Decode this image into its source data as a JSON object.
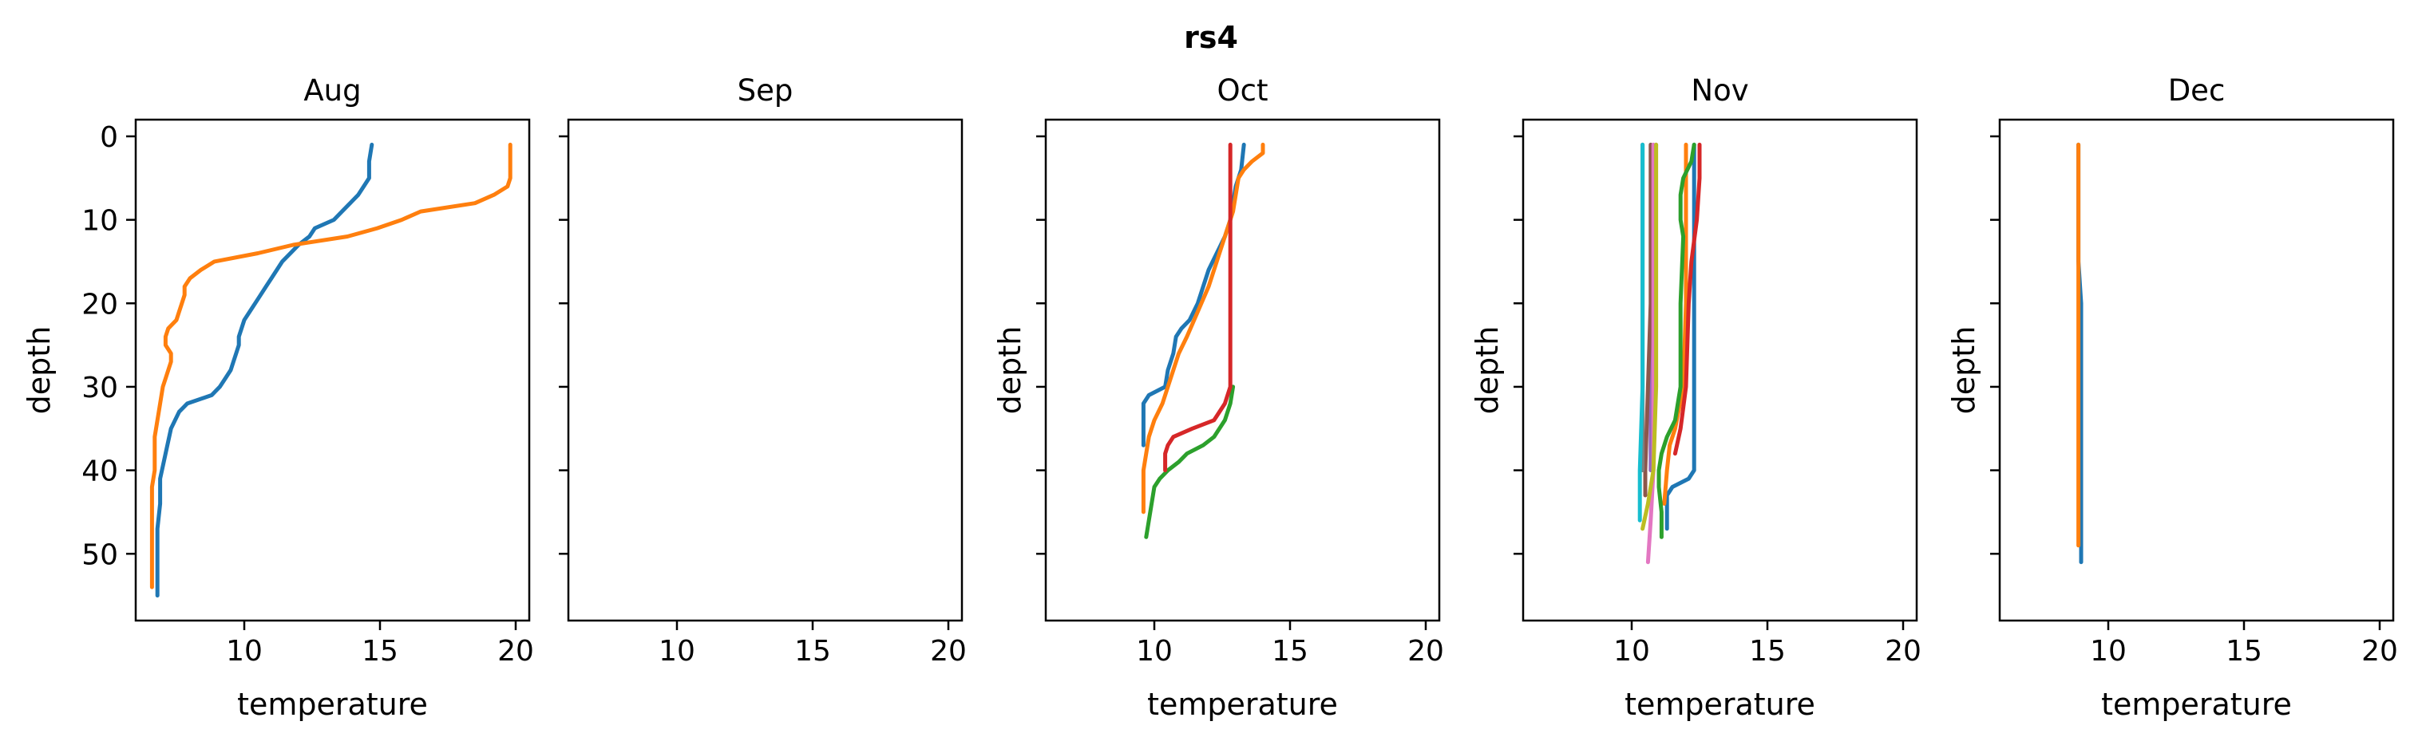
{
  "figure": {
    "suptitle": "rs4"
  },
  "chart_data": [
    {
      "type": "line",
      "title": "Aug",
      "xlabel": "temperature",
      "ylabel": "depth",
      "xlim": [
        6.0,
        20.5
      ],
      "ylim": [
        58,
        -2
      ],
      "y_inverted": true,
      "xticks": [
        10,
        15,
        20
      ],
      "yticks": [
        0,
        10,
        20,
        30,
        40,
        50
      ],
      "show_yticklabels": true,
      "grid": false,
      "series": [
        {
          "color": "#1f77b4",
          "points": [
            [
              14.7,
              1
            ],
            [
              14.6,
              3
            ],
            [
              14.6,
              5
            ],
            [
              14.4,
              6
            ],
            [
              14.2,
              7
            ],
            [
              13.9,
              8
            ],
            [
              13.6,
              9
            ],
            [
              13.3,
              10
            ],
            [
              12.6,
              11
            ],
            [
              12.4,
              12
            ],
            [
              12.0,
              13
            ],
            [
              11.7,
              14
            ],
            [
              11.4,
              15
            ],
            [
              11.2,
              16
            ],
            [
              11.0,
              17
            ],
            [
              10.8,
              18
            ],
            [
              10.6,
              19
            ],
            [
              10.4,
              20
            ],
            [
              10.2,
              21
            ],
            [
              10.0,
              22
            ],
            [
              9.9,
              23
            ],
            [
              9.8,
              24
            ],
            [
              9.8,
              25
            ],
            [
              9.7,
              26
            ],
            [
              9.6,
              27
            ],
            [
              9.5,
              28
            ],
            [
              9.3,
              29
            ],
            [
              9.1,
              30
            ],
            [
              8.8,
              31
            ],
            [
              7.9,
              32
            ],
            [
              7.6,
              33
            ],
            [
              7.3,
              35
            ],
            [
              7.1,
              38
            ],
            [
              6.9,
              41
            ],
            [
              6.9,
              44
            ],
            [
              6.8,
              47
            ],
            [
              6.8,
              50
            ],
            [
              6.8,
              53
            ],
            [
              6.8,
              55
            ]
          ]
        },
        {
          "color": "#ff7f0e",
          "points": [
            [
              19.8,
              1
            ],
            [
              19.8,
              3
            ],
            [
              19.8,
              5
            ],
            [
              19.7,
              6
            ],
            [
              19.2,
              7
            ],
            [
              18.5,
              8
            ],
            [
              16.5,
              9
            ],
            [
              15.8,
              10
            ],
            [
              14.9,
              11
            ],
            [
              13.8,
              12
            ],
            [
              11.8,
              13
            ],
            [
              10.5,
              14
            ],
            [
              8.9,
              15
            ],
            [
              8.4,
              16
            ],
            [
              8.0,
              17
            ],
            [
              7.8,
              18
            ],
            [
              7.8,
              19
            ],
            [
              7.7,
              20
            ],
            [
              7.6,
              21
            ],
            [
              7.5,
              22
            ],
            [
              7.2,
              23
            ],
            [
              7.1,
              24
            ],
            [
              7.1,
              25
            ],
            [
              7.3,
              26
            ],
            [
              7.3,
              27
            ],
            [
              7.2,
              28
            ],
            [
              7.1,
              29
            ],
            [
              7.0,
              30
            ],
            [
              6.9,
              32
            ],
            [
              6.8,
              34
            ],
            [
              6.7,
              36
            ],
            [
              6.7,
              38
            ],
            [
              6.7,
              40
            ],
            [
              6.6,
              42
            ],
            [
              6.6,
              44
            ],
            [
              6.6,
              46
            ],
            [
              6.6,
              48
            ],
            [
              6.6,
              50
            ],
            [
              6.6,
              52
            ],
            [
              6.6,
              54
            ]
          ]
        }
      ]
    },
    {
      "type": "line",
      "title": "Sep",
      "xlabel": "",
      "ylabel": "",
      "xlim": [
        6.0,
        20.5
      ],
      "ylim": [
        58,
        -2
      ],
      "y_inverted": true,
      "xticks": [
        10,
        15,
        20
      ],
      "yticks": [
        0,
        10,
        20,
        30,
        40,
        50
      ],
      "show_yticklabels": false,
      "grid": false,
      "series": []
    },
    {
      "type": "line",
      "title": "Oct",
      "xlabel": "temperature",
      "ylabel": "depth",
      "xlim": [
        6.0,
        20.5
      ],
      "ylim": [
        58,
        -2
      ],
      "y_inverted": true,
      "xticks": [
        10,
        15,
        20
      ],
      "yticks": [
        0,
        10,
        20,
        30,
        40,
        50
      ],
      "show_yticklabels": false,
      "grid": false,
      "series": [
        {
          "color": "#1f77b4",
          "points": [
            [
              13.3,
              1
            ],
            [
              13.2,
              4
            ],
            [
              13.0,
              6
            ],
            [
              12.9,
              8
            ],
            [
              12.8,
              10
            ],
            [
              12.6,
              12
            ],
            [
              12.3,
              14
            ],
            [
              12.0,
              16
            ],
            [
              11.8,
              18
            ],
            [
              11.6,
              20
            ],
            [
              11.3,
              22
            ],
            [
              11.0,
              23
            ],
            [
              10.8,
              24
            ],
            [
              10.7,
              26
            ],
            [
              10.5,
              28
            ],
            [
              10.4,
              30
            ],
            [
              9.8,
              31
            ],
            [
              9.6,
              32
            ],
            [
              9.6,
              34
            ],
            [
              9.6,
              37
            ]
          ]
        },
        {
          "color": "#ff7f0e",
          "points": [
            [
              14.0,
              1
            ],
            [
              14.0,
              2
            ],
            [
              13.6,
              3
            ],
            [
              13.3,
              4
            ],
            [
              13.1,
              5
            ],
            [
              13.0,
              7
            ],
            [
              12.9,
              9
            ],
            [
              12.6,
              12
            ],
            [
              12.3,
              15
            ],
            [
              12.0,
              18
            ],
            [
              11.6,
              21
            ],
            [
              11.2,
              24
            ],
            [
              10.9,
              26
            ],
            [
              10.7,
              28
            ],
            [
              10.5,
              30
            ],
            [
              10.3,
              32
            ],
            [
              10.0,
              34
            ],
            [
              9.8,
              36
            ],
            [
              9.7,
              38
            ],
            [
              9.6,
              40
            ],
            [
              9.6,
              42
            ],
            [
              9.6,
              45
            ]
          ]
        },
        {
          "color": "#2ca02c",
          "points": [
            [
              12.9,
              30
            ],
            [
              12.8,
              32
            ],
            [
              12.6,
              34
            ],
            [
              12.2,
              36
            ],
            [
              11.8,
              37
            ],
            [
              11.2,
              38
            ],
            [
              10.9,
              39
            ],
            [
              10.5,
              40
            ],
            [
              10.2,
              41
            ],
            [
              10.0,
              42
            ],
            [
              9.9,
              44
            ],
            [
              9.8,
              46
            ],
            [
              9.7,
              48
            ]
          ]
        },
        {
          "color": "#d62728",
          "points": [
            [
              12.8,
              1
            ],
            [
              12.8,
              10
            ],
            [
              12.8,
              20
            ],
            [
              12.8,
              28
            ],
            [
              12.8,
              30
            ],
            [
              12.6,
              32
            ],
            [
              12.2,
              34
            ],
            [
              11.4,
              35
            ],
            [
              10.7,
              36
            ],
            [
              10.5,
              37
            ],
            [
              10.4,
              38
            ],
            [
              10.4,
              40
            ]
          ]
        }
      ]
    },
    {
      "type": "line",
      "title": "Nov",
      "xlabel": "temperature",
      "ylabel": "depth",
      "xlim": [
        6.0,
        20.5
      ],
      "ylim": [
        58,
        -2
      ],
      "y_inverted": true,
      "xticks": [
        10,
        15,
        20
      ],
      "yticks": [
        0,
        10,
        20,
        30,
        40,
        50
      ],
      "show_yticklabels": false,
      "grid": false,
      "series": [
        {
          "color": "#1f77b4",
          "points": [
            [
              12.3,
              1
            ],
            [
              12.3,
              10
            ],
            [
              12.3,
              20
            ],
            [
              12.3,
              30
            ],
            [
              12.3,
              40
            ],
            [
              12.1,
              41
            ],
            [
              11.5,
              42
            ],
            [
              11.3,
              43
            ],
            [
              11.3,
              45
            ],
            [
              11.3,
              47
            ]
          ]
        },
        {
          "color": "#ff7f0e",
          "points": [
            [
              12.0,
              1
            ],
            [
              12.0,
              10
            ],
            [
              12.0,
              20
            ],
            [
              11.9,
              30
            ],
            [
              11.6,
              35
            ],
            [
              11.4,
              37
            ],
            [
              11.3,
              40
            ],
            [
              11.2,
              44
            ]
          ]
        },
        {
          "color": "#2ca02c",
          "points": [
            [
              12.3,
              1
            ],
            [
              12.2,
              3
            ],
            [
              11.9,
              5
            ],
            [
              11.8,
              7
            ],
            [
              11.8,
              10
            ],
            [
              11.9,
              12
            ],
            [
              11.8,
              20
            ],
            [
              11.8,
              30
            ],
            [
              11.6,
              34
            ],
            [
              11.3,
              36
            ],
            [
              11.1,
              38
            ],
            [
              11.0,
              40
            ],
            [
              11.0,
              42
            ],
            [
              11.1,
              45
            ],
            [
              11.1,
              48
            ]
          ]
        },
        {
          "color": "#d62728",
          "points": [
            [
              12.5,
              1
            ],
            [
              12.5,
              5
            ],
            [
              12.4,
              10
            ],
            [
              12.2,
              15
            ],
            [
              12.1,
              20
            ],
            [
              12.0,
              30
            ],
            [
              11.8,
              35
            ],
            [
              11.6,
              38
            ]
          ]
        },
        {
          "color": "#9467bd",
          "points": [
            [
              10.9,
              1
            ],
            [
              10.8,
              10
            ],
            [
              10.8,
              20
            ],
            [
              10.7,
              30
            ],
            [
              10.7,
              40
            ]
          ]
        },
        {
          "color": "#8c564b",
          "points": [
            [
              10.7,
              1
            ],
            [
              10.7,
              10
            ],
            [
              10.7,
              20
            ],
            [
              10.6,
              30
            ],
            [
              10.5,
              40
            ],
            [
              10.5,
              43
            ]
          ]
        },
        {
          "color": "#e377c2",
          "points": [
            [
              10.8,
              1
            ],
            [
              10.8,
              20
            ],
            [
              10.8,
              40
            ],
            [
              10.7,
              46
            ],
            [
              10.6,
              51
            ]
          ]
        },
        {
          "color": "#7f7f7f",
          "points": [
            [
              10.4,
              1
            ],
            [
              10.4,
              20
            ],
            [
              10.4,
              30
            ],
            [
              10.4,
              40
            ]
          ]
        },
        {
          "color": "#bcbd22",
          "points": [
            [
              10.9,
              1
            ],
            [
              10.9,
              20
            ],
            [
              10.9,
              30
            ],
            [
              10.8,
              40
            ],
            [
              10.6,
              44
            ],
            [
              10.4,
              47
            ]
          ]
        },
        {
          "color": "#17becf",
          "points": [
            [
              10.4,
              1
            ],
            [
              10.4,
              10
            ],
            [
              10.4,
              20
            ],
            [
              10.4,
              30
            ],
            [
              10.3,
              40
            ],
            [
              10.3,
              46
            ]
          ]
        }
      ]
    },
    {
      "type": "line",
      "title": "Dec",
      "xlabel": "temperature",
      "ylabel": "depth",
      "xlim": [
        6.0,
        20.5
      ],
      "ylim": [
        58,
        -2
      ],
      "y_inverted": true,
      "xticks": [
        10,
        15,
        20
      ],
      "yticks": [
        0,
        10,
        20,
        30,
        40,
        50
      ],
      "show_yticklabels": false,
      "grid": false,
      "series": [
        {
          "color": "#1f77b4",
          "points": [
            [
              8.9,
              1
            ],
            [
              8.9,
              10
            ],
            [
              8.9,
              15
            ],
            [
              9.0,
              20
            ],
            [
              9.0,
              30
            ],
            [
              9.0,
              40
            ],
            [
              9.0,
              45
            ],
            [
              9.0,
              50
            ],
            [
              9.0,
              51
            ]
          ]
        },
        {
          "color": "#ff7f0e",
          "points": [
            [
              8.9,
              1
            ],
            [
              8.9,
              10
            ],
            [
              8.9,
              14
            ],
            [
              8.9,
              16
            ],
            [
              8.9,
              20
            ],
            [
              8.9,
              30
            ],
            [
              8.9,
              40
            ],
            [
              8.9,
              45
            ],
            [
              8.9,
              49
            ]
          ]
        }
      ]
    }
  ]
}
